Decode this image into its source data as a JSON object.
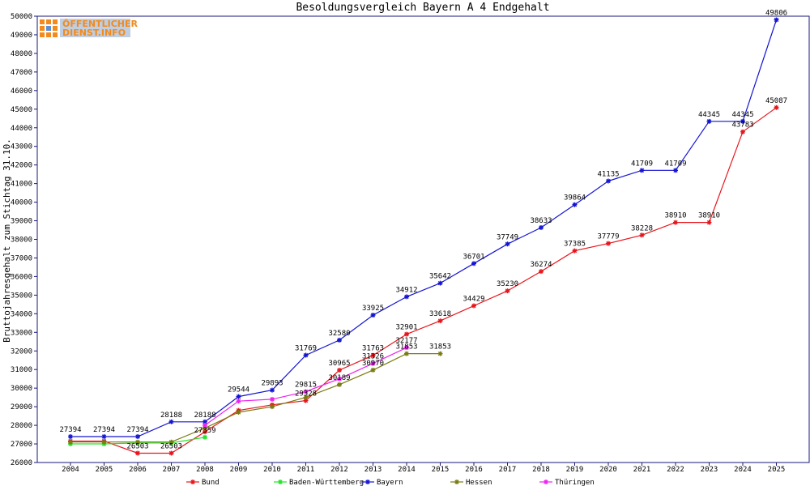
{
  "logo": {
    "line1": "ÖFFENTLICHER",
    "line2": "DIENST.INFO"
  },
  "chart_data": {
    "type": "line",
    "title": "Besoldungsvergleich Bayern A 4 Endgehalt",
    "ylabel": "Bruttojahresgehalt zum Stichtag 31.10.",
    "xlabel": "",
    "x": [
      2004,
      2005,
      2006,
      2007,
      2008,
      2009,
      2010,
      2011,
      2012,
      2013,
      2014,
      2015,
      2016,
      2017,
      2018,
      2019,
      2020,
      2021,
      2022,
      2023,
      2024,
      2025
    ],
    "ylim": [
      26000,
      50000
    ],
    "yticks": [
      26000,
      27000,
      28000,
      29000,
      30000,
      31000,
      32000,
      33000,
      34000,
      35000,
      36000,
      37000,
      38000,
      39000,
      40000,
      41000,
      42000,
      43000,
      44000,
      45000,
      46000,
      47000,
      48000,
      49000,
      50000
    ],
    "grid": false,
    "legend_position": "bottom",
    "series": [
      {
        "name": "Bund",
        "color": "#e8141b",
        "values": [
          27150,
          27150,
          26503,
          26503,
          27650,
          28800,
          29100,
          29328,
          30965,
          31763,
          32901,
          33618,
          34429,
          35230,
          36274,
          37385,
          37779,
          38228,
          38910,
          38910,
          43783,
          45087
        ],
        "labels": [
          "",
          "",
          "26503",
          "26503",
          "",
          "",
          "",
          "29328",
          "30965",
          "31763",
          "32901",
          "33618",
          "34429",
          "35230",
          "36274",
          "37385",
          "37779",
          "38228",
          "38910",
          "38910",
          "43783",
          "45087"
        ]
      },
      {
        "name": "Baden-Württemberg",
        "color": "#22e32a",
        "values": [
          27000,
          27000,
          27050,
          27050,
          27359,
          null,
          null,
          null,
          null,
          null,
          null,
          null,
          null,
          null,
          null,
          null,
          null,
          null,
          null,
          null,
          null,
          null
        ],
        "labels": [
          "",
          "",
          "",
          "",
          "27359",
          "",
          "",
          "",
          "",
          "",
          "",
          "",
          "",
          "",
          "",
          "",
          "",
          "",
          "",
          "",
          "",
          ""
        ]
      },
      {
        "name": "Bayern",
        "color": "#1414d2",
        "values": [
          27394,
          27394,
          27394,
          28188,
          28188,
          29544,
          29893,
          31769,
          32580,
          33925,
          34912,
          35642,
          36701,
          37749,
          38633,
          39864,
          41135,
          41709,
          41709,
          44345,
          44345,
          49806
        ],
        "labels": [
          "27394",
          "27394",
          "27394",
          "28188",
          "28188",
          "29544",
          "29893",
          "31769",
          "32580",
          "33925",
          "34912",
          "35642",
          "36701",
          "37749",
          "38633",
          "39864",
          "41135",
          "41709",
          "41709",
          "44345",
          "44345",
          "49806"
        ]
      },
      {
        "name": "Hessen",
        "color": "#7a7a10",
        "values": [
          27100,
          27100,
          27100,
          27100,
          27850,
          28700,
          29000,
          29500,
          30189,
          30970,
          31853,
          31853,
          null,
          null,
          null,
          null,
          null,
          null,
          null,
          null,
          null,
          null
        ],
        "labels": [
          "",
          "",
          "",
          "",
          "",
          "",
          "",
          "",
          "30189",
          "30970",
          "31853",
          "31853",
          "",
          "",
          "",
          "",
          "",
          "",
          "",
          "",
          "",
          ""
        ]
      },
      {
        "name": "Thüringen",
        "color": "#ee22ee",
        "values": [
          null,
          null,
          null,
          null,
          28000,
          29300,
          29400,
          29815,
          30500,
          31326,
          32177,
          null,
          null,
          null,
          null,
          null,
          null,
          null,
          null,
          null,
          null,
          null
        ],
        "labels": [
          "",
          "",
          "",
          "",
          "",
          "",
          "",
          "29815",
          "",
          "31326",
          "32177",
          "",
          "",
          "",
          "",
          "",
          "",
          "",
          "",
          "",
          "",
          ""
        ]
      }
    ]
  }
}
